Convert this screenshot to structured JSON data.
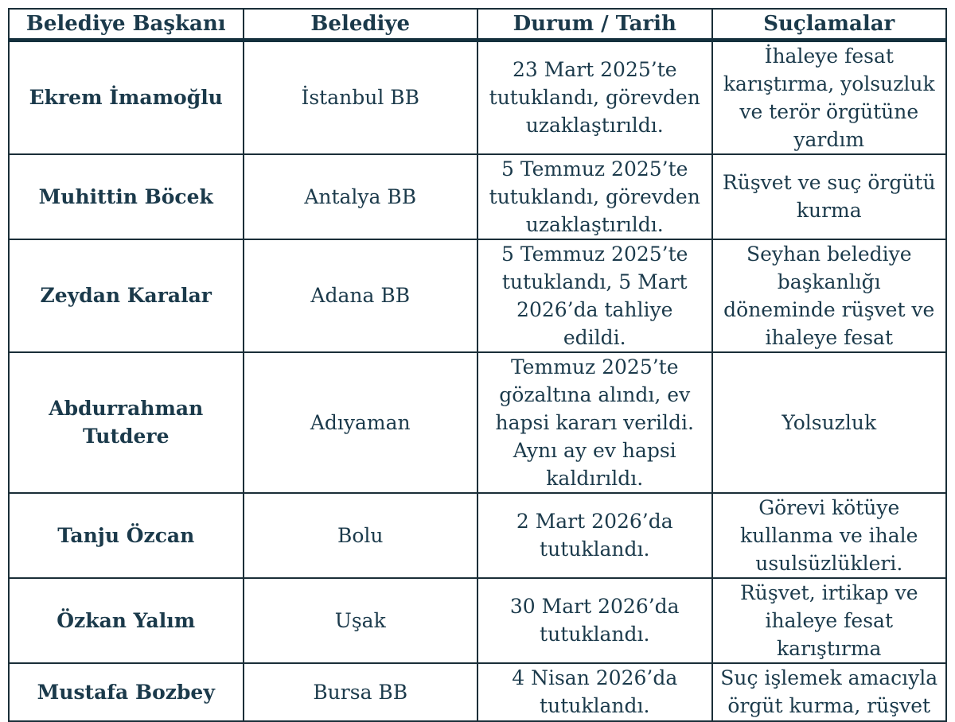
{
  "colors": {
    "text": "#1b3a4b",
    "border": "#1a2e38",
    "header_underline": "#14303d",
    "background": "#ffffff"
  },
  "table": {
    "headers": [
      "Belediye Başkanı",
      "Belediye",
      "Durum / Tarih",
      "Suçlamalar"
    ],
    "rows": [
      {
        "mayor": "Ekrem İmamoğlu",
        "municipality": "İstanbul BB",
        "status": "23 Mart 2025’te tutuklandı, görevden uzaklaştırıldı.",
        "charges": "İhaleye fesat karıştırma, yolsuzluk ve terör örgütüne yardım"
      },
      {
        "mayor": "Muhittin Böcek",
        "municipality": "Antalya BB",
        "status": "5 Temmuz 2025’te tutuklandı, görevden uzaklaştırıldı.",
        "charges": "Rüşvet ve suç örgütü kurma"
      },
      {
        "mayor": "Zeydan Karalar",
        "municipality": "Adana BB",
        "status": "5 Temmuz 2025’te tutuklandı, 5 Mart 2026’da tahliye edildi.",
        "charges": "Seyhan belediye başkanlığı döneminde rüşvet ve ihaleye fesat"
      },
      {
        "mayor": "Abdurrahman Tutdere",
        "municipality": "Adıyaman",
        "status": "Temmuz 2025’te gözaltına alındı, ev hapsi kararı verildi. Aynı ay ev hapsi kaldırıldı.",
        "charges": "Yolsuzluk"
      },
      {
        "mayor": "Tanju Özcan",
        "municipality": "Bolu",
        "status": "2 Mart 2026’da tutuklandı.",
        "charges": "Görevi kötüye kullanma ve ihale usulsüzlükleri."
      },
      {
        "mayor": "Özkan Yalım",
        "municipality": "Uşak",
        "status": "30 Mart 2026’da tutuklandı.",
        "charges": "Rüşvet, irtikap ve ihaleye fesat karıştırma"
      },
      {
        "mayor": "Mustafa Bozbey",
        "municipality": "Bursa BB",
        "status": "4 Nisan 2026’da tutuklandı.",
        "charges": "Suç işlemek amacıyla örgüt kurma, rüşvet"
      }
    ]
  }
}
